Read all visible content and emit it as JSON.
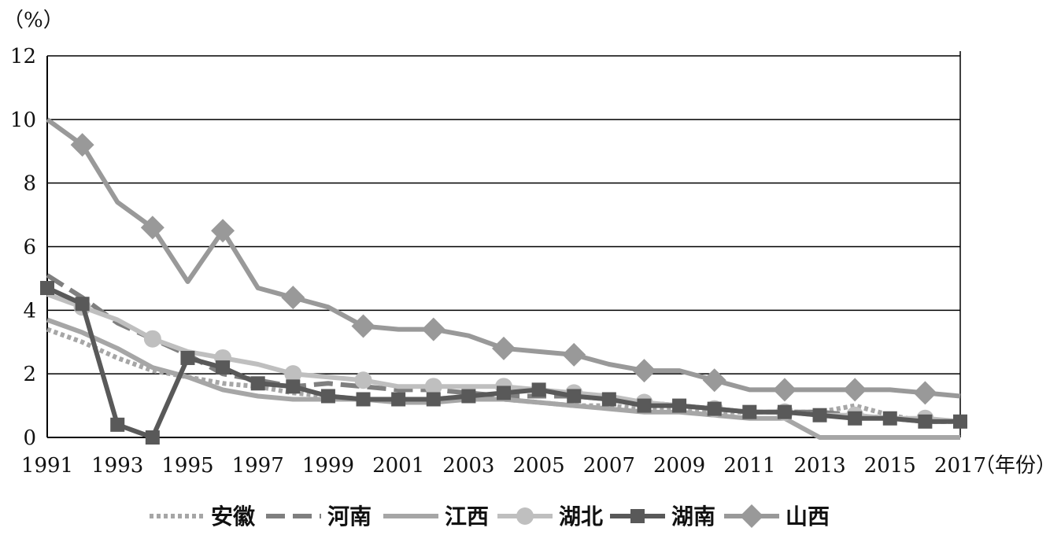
{
  "chart_data": {
    "type": "line",
    "title": "",
    "y_unit": "（%）",
    "x_unit": "（年份）",
    "xlim": [
      1991,
      2017
    ],
    "ylim": [
      0,
      12
    ],
    "x_ticks": [
      "1991",
      "1993",
      "1995",
      "1997",
      "1999",
      "2001",
      "2003",
      "2005",
      "2007",
      "2009",
      "2011",
      "2013",
      "2015",
      "2017"
    ],
    "y_ticks": [
      "0",
      "2",
      "4",
      "6",
      "8",
      "10",
      "12"
    ],
    "grid": true,
    "legend_position": "bottom",
    "x": [
      1991,
      1992,
      1993,
      1994,
      1995,
      1996,
      1997,
      1998,
      1999,
      2000,
      2001,
      2002,
      2003,
      2004,
      2005,
      2006,
      2007,
      2008,
      2009,
      2010,
      2011,
      2012,
      2013,
      2014,
      2015,
      2016,
      2017
    ],
    "series": [
      {
        "name": "安徽",
        "style": "dotted",
        "color": "#a6a6a6",
        "values": [
          3.4,
          3.0,
          2.5,
          2.1,
          1.9,
          1.7,
          1.6,
          1.4,
          1.3,
          1.2,
          1.2,
          1.2,
          1.3,
          1.2,
          1.1,
          1.0,
          1.0,
          0.9,
          0.9,
          0.8,
          0.8,
          0.8,
          0.8,
          1.0,
          0.7,
          0.5,
          0.5
        ]
      },
      {
        "name": "河南",
        "style": "dashed",
        "color": "#7f7f7f",
        "values": [
          5.1,
          4.4,
          3.6,
          3.1,
          2.6,
          2.0,
          1.8,
          1.6,
          1.7,
          1.6,
          1.5,
          1.5,
          1.4,
          1.3,
          1.3,
          1.3,
          1.2,
          1.1,
          1.0,
          0.9,
          0.8,
          0.8,
          0.8,
          0.7,
          0.6,
          0.5,
          0.5
        ]
      },
      {
        "name": "江西",
        "style": "solid",
        "color": "#a6a6a6",
        "values": [
          3.7,
          3.3,
          2.8,
          2.2,
          1.9,
          1.5,
          1.3,
          1.2,
          1.2,
          1.2,
          1.1,
          1.1,
          1.2,
          1.2,
          1.1,
          1.0,
          0.9,
          0.8,
          0.8,
          0.7,
          0.6,
          0.6,
          0.0,
          0.0,
          0.0,
          0.0,
          0.0
        ]
      },
      {
        "name": "湖北",
        "style": "solid-circle",
        "color": "#bfbfbf",
        "values": [
          4.5,
          4.1,
          3.7,
          3.1,
          2.7,
          2.5,
          2.3,
          2.0,
          1.9,
          1.8,
          1.6,
          1.6,
          1.6,
          1.6,
          1.5,
          1.4,
          1.3,
          1.1,
          1.0,
          0.9,
          0.8,
          0.8,
          0.7,
          0.7,
          0.6,
          0.6,
          0.5
        ]
      },
      {
        "name": "湖南",
        "style": "solid-square",
        "color": "#595959",
        "values": [
          4.7,
          4.2,
          0.4,
          0.0,
          2.5,
          2.2,
          1.7,
          1.6,
          1.3,
          1.2,
          1.2,
          1.2,
          1.3,
          1.4,
          1.5,
          1.3,
          1.2,
          1.0,
          1.0,
          0.9,
          0.8,
          0.8,
          0.7,
          0.6,
          0.6,
          0.5,
          0.5
        ]
      },
      {
        "name": "山西",
        "style": "solid-diamond",
        "color": "#999999",
        "values": [
          10.0,
          9.2,
          7.4,
          6.6,
          4.9,
          6.5,
          4.7,
          4.4,
          4.1,
          3.5,
          3.4,
          3.4,
          3.2,
          2.8,
          2.7,
          2.6,
          2.3,
          2.1,
          2.1,
          1.8,
          1.5,
          1.5,
          1.5,
          1.5,
          1.5,
          1.4,
          1.3
        ]
      }
    ]
  }
}
